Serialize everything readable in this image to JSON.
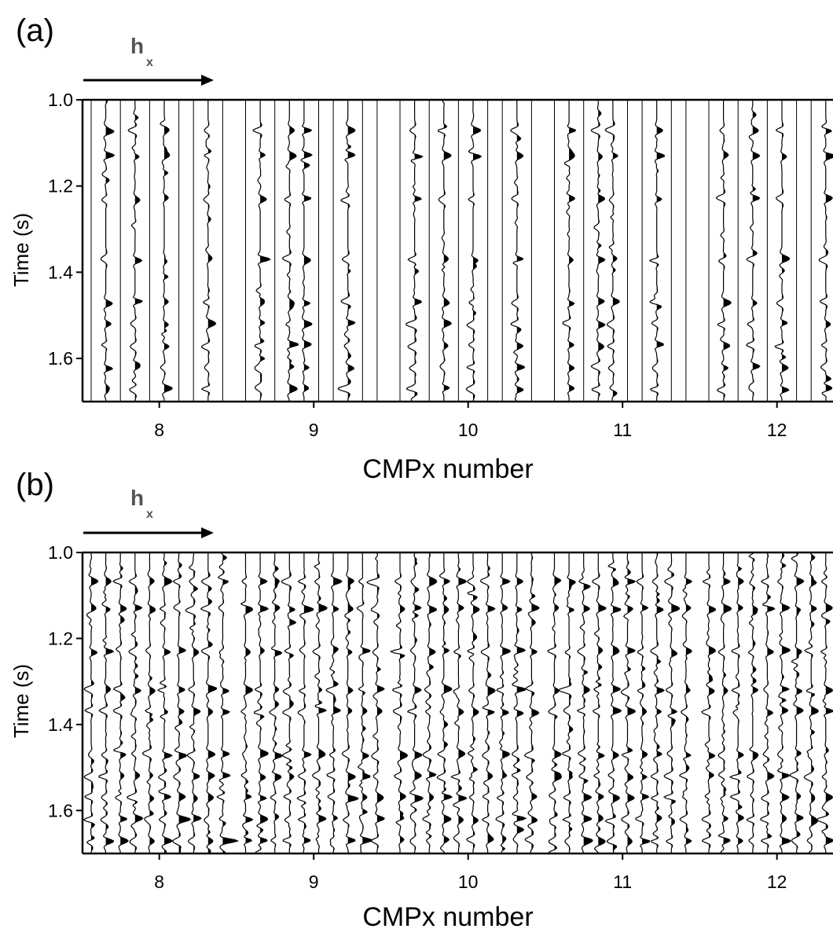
{
  "chart_data": [
    {
      "type": "seismic-wiggle",
      "panel_label": "(a)",
      "arrow_label": "h",
      "arrow_subscript": "x",
      "xlabel": "CMPx number",
      "ylabel": "Time (s)",
      "ylim": [
        1.0,
        1.7
      ],
      "y_ticks": [
        "1.0",
        "1.2",
        "1.4",
        "1.6"
      ],
      "x_ticks": [
        "8",
        "9",
        "10",
        "11",
        "12"
      ],
      "cmp_groups": [
        8,
        9,
        10,
        11,
        12
      ],
      "traces_per_group": 10,
      "live_trace_slots": [
        1,
        3,
        5,
        8
      ],
      "live_slots_alternate": [
        1,
        3,
        4,
        7
      ],
      "dead_traces": "empty slots drawn as vertical lines",
      "reflection_times": [
        1.07,
        1.13,
        1.23,
        1.37,
        1.47,
        1.52,
        1.57,
        1.62,
        1.67
      ]
    },
    {
      "type": "seismic-wiggle",
      "panel_label": "(b)",
      "arrow_label": "h",
      "arrow_subscript": "x",
      "xlabel": "CMPx number",
      "ylabel": "Time (s)",
      "ylim": [
        1.0,
        1.7
      ],
      "y_ticks": [
        "1.0",
        "1.2",
        "1.4",
        "1.6"
      ],
      "x_ticks": [
        "8",
        "9",
        "10",
        "11",
        "12"
      ],
      "cmp_groups": [
        8,
        9,
        10,
        11,
        12
      ],
      "traces_per_group": 10,
      "live_trace_slots": "all",
      "reflection_times": [
        1.07,
        1.13,
        1.23,
        1.32,
        1.37,
        1.47,
        1.52,
        1.57,
        1.62,
        1.67
      ]
    }
  ]
}
